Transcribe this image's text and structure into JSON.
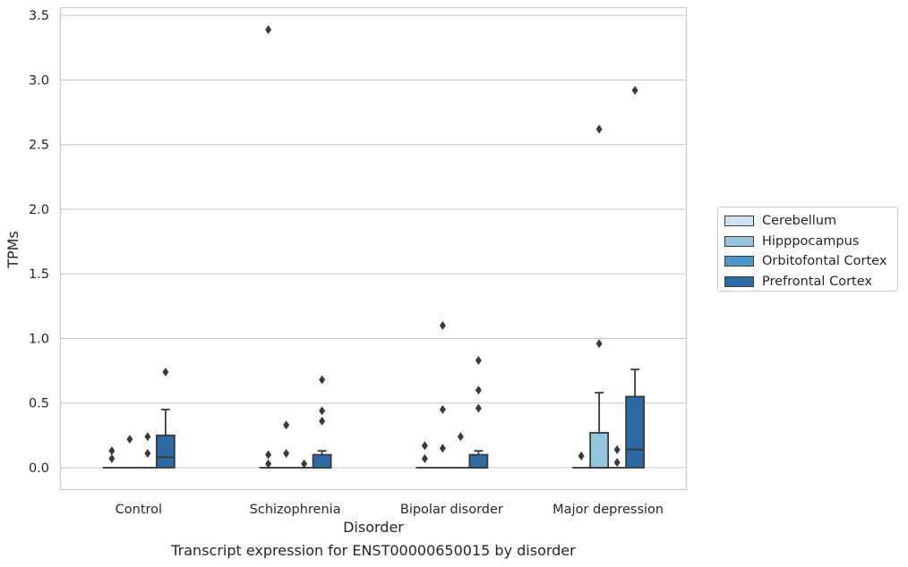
{
  "caption": "Transcript expression for ENST00000650015 by disorder",
  "chart_data": {
    "type": "box",
    "title": "",
    "xlabel": "Disorder",
    "ylabel": "TPMs",
    "ylim": [
      -0.17,
      3.56
    ],
    "yticks": [
      0.0,
      0.5,
      1.0,
      1.5,
      2.0,
      2.5,
      3.0,
      3.5
    ],
    "ytick_labels": [
      "0.0",
      "0.5",
      "1.0",
      "1.5",
      "2.0",
      "2.5",
      "3.0",
      "3.5"
    ],
    "grid": "horizontal",
    "legend_position": "right",
    "categories": [
      "Control",
      "Schizophrenia",
      "Bipolar disorder",
      "Major depression"
    ],
    "series": [
      {
        "name": "Cerebellum",
        "color": "#d0e1f2",
        "boxes": [
          {
            "q1": 0,
            "median": 0,
            "q3": 0,
            "whislo": 0,
            "whishi": 0,
            "fliers": [
              0.07,
              0.13
            ]
          },
          {
            "q1": 0,
            "median": 0,
            "q3": 0,
            "whislo": 0,
            "whishi": 0,
            "fliers": [
              0.03,
              0.1,
              3.39
            ]
          },
          {
            "q1": 0,
            "median": 0,
            "q3": 0,
            "whislo": 0,
            "whishi": 0,
            "fliers": [
              0.07,
              0.17
            ]
          },
          {
            "q1": 0,
            "median": 0,
            "q3": 0,
            "whislo": 0,
            "whishi": 0,
            "fliers": [
              0.09
            ]
          }
        ]
      },
      {
        "name": "Hipppocampus",
        "color": "#94c4df",
        "boxes": [
          {
            "q1": 0,
            "median": 0,
            "q3": 0,
            "whislo": 0,
            "whishi": 0,
            "fliers": [
              0.22
            ]
          },
          {
            "q1": 0,
            "median": 0,
            "q3": 0,
            "whislo": 0,
            "whishi": 0,
            "fliers": [
              0.11,
              0.33
            ]
          },
          {
            "q1": 0,
            "median": 0,
            "q3": 0,
            "whislo": 0,
            "whishi": 0,
            "fliers": [
              0.15,
              0.45,
              1.1
            ]
          },
          {
            "q1": 0,
            "median": 0,
            "q3": 0.27,
            "whislo": 0,
            "whishi": 0.58,
            "fliers": [
              0.96,
              2.62
            ]
          }
        ]
      },
      {
        "name": "Orbitofontal Cortex",
        "color": "#4a98c9",
        "boxes": [
          {
            "q1": 0,
            "median": 0,
            "q3": 0,
            "whislo": 0,
            "whishi": 0,
            "fliers": [
              0.11,
              0.24
            ]
          },
          {
            "q1": 0,
            "median": 0,
            "q3": 0,
            "whislo": 0,
            "whishi": 0,
            "fliers": [
              0.03
            ]
          },
          {
            "q1": 0,
            "median": 0,
            "q3": 0,
            "whislo": 0,
            "whishi": 0,
            "fliers": [
              0.24
            ]
          },
          {
            "q1": 0,
            "median": 0,
            "q3": 0,
            "whislo": 0,
            "whishi": 0,
            "fliers": [
              0.04,
              0.14
            ]
          }
        ]
      },
      {
        "name": "Prefrontal Cortex",
        "color": "#2c6aa5",
        "boxes": [
          {
            "q1": 0,
            "median": 0.08,
            "q3": 0.25,
            "whislo": 0,
            "whishi": 0.45,
            "fliers": [
              0.74
            ]
          },
          {
            "q1": 0,
            "median": 0,
            "q3": 0.1,
            "whislo": 0,
            "whishi": 0.13,
            "fliers": [
              0.36,
              0.44,
              0.68
            ]
          },
          {
            "q1": 0,
            "median": 0,
            "q3": 0.1,
            "whislo": 0,
            "whishi": 0.13,
            "fliers": [
              0.46,
              0.6,
              0.83
            ]
          },
          {
            "q1": 0,
            "median": 0.14,
            "q3": 0.55,
            "whislo": 0,
            "whishi": 0.76,
            "fliers": [
              2.92
            ]
          }
        ]
      }
    ]
  }
}
